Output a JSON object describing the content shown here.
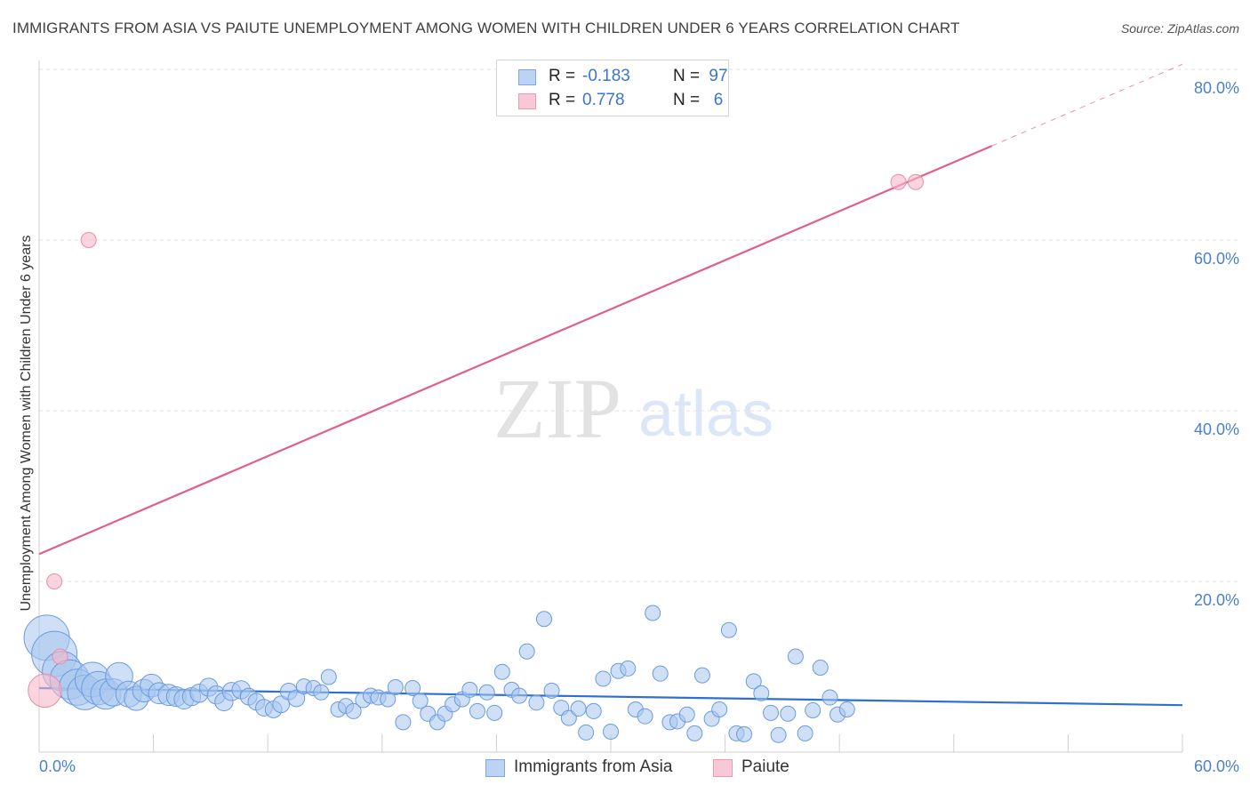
{
  "title": "IMMIGRANTS FROM ASIA VS PAIUTE UNEMPLOYMENT AMONG WOMEN WITH CHILDREN UNDER 6 YEARS CORRELATION CHART",
  "source": "Source: ZipAtlas.com",
  "watermark": {
    "zip": "ZIP",
    "atlas": "atlas"
  },
  "colors": {
    "asia_fill": "#a8c6ef",
    "asia_stroke": "#6a9be0",
    "asia_line": "#2f6fcf",
    "paiute_fill": "#f7b8ca",
    "paiute_stroke": "#e88fa8",
    "paiute_line": "#e0608a",
    "tick_text": "#4a7fd0",
    "grid": "#e0e0e0"
  },
  "legend": {
    "rows": [
      {
        "r_label": "R =",
        "r_value": "-0.183",
        "n_label": "N =",
        "n_value": "97"
      },
      {
        "r_label": "R =",
        "r_value": "0.778",
        "n_label": "N =",
        "n_value": "6"
      }
    ]
  },
  "bottom_legend": {
    "asia": "Immigrants from Asia",
    "paiute": "Paiute"
  },
  "chart_data": {
    "type": "scatter",
    "title": "IMMIGRANTS FROM ASIA VS PAIUTE UNEMPLOYMENT AMONG WOMEN WITH CHILDREN UNDER 6 YEARS CORRELATION CHART",
    "xlabel": "",
    "ylabel": "Unemployment Among Women with Children Under 6 years",
    "xlim": [
      0,
      60
    ],
    "ylim": [
      0,
      80
    ],
    "x_tick_labels": [
      "0.0%",
      "60.0%"
    ],
    "y_ticks": [
      20,
      40,
      60,
      80
    ],
    "y_tick_labels": [
      "20.0%",
      "40.0%",
      "60.0%",
      "80.0%"
    ],
    "grid": true,
    "series": [
      {
        "name": "Immigrants from Asia",
        "r": -0.183,
        "n": 97,
        "trend": {
          "x": [
            0,
            60
          ],
          "y": [
            7.5,
            5.5
          ],
          "dashed_from": null
        },
        "points": [
          [
            0.4,
            13.4,
            3
          ],
          [
            0.8,
            11.5,
            3
          ],
          [
            1.2,
            9.5,
            2.6
          ],
          [
            1.6,
            8.5,
            2.6
          ],
          [
            2.0,
            7.6,
            2.4
          ],
          [
            2.4,
            7.0,
            2.3
          ],
          [
            2.8,
            8.5,
            2.3
          ],
          [
            3.1,
            7.5,
            2.2
          ],
          [
            3.5,
            6.8,
            2
          ],
          [
            3.9,
            7.0,
            1.8
          ],
          [
            4.2,
            8.9,
            1.8
          ],
          [
            4.7,
            6.8,
            1.7
          ],
          [
            5.1,
            6.3,
            1.6
          ],
          [
            5.5,
            7.2,
            1.5
          ],
          [
            5.9,
            7.8,
            1.5
          ],
          [
            6.3,
            6.9,
            1.4
          ],
          [
            6.8,
            6.7,
            1.4
          ],
          [
            7.2,
            6.5,
            1.3
          ],
          [
            7.6,
            6.2,
            1.3
          ],
          [
            8.0,
            6.5,
            1.2
          ],
          [
            8.4,
            6.9,
            1.2
          ],
          [
            8.9,
            7.6,
            1.2
          ],
          [
            9.3,
            6.7,
            1.2
          ],
          [
            9.7,
            5.9,
            1.2
          ],
          [
            10.1,
            7.1,
            1.2
          ],
          [
            10.6,
            7.3,
            1.2
          ],
          [
            11.0,
            6.5,
            1.1
          ],
          [
            11.4,
            5.9,
            1.1
          ],
          [
            11.8,
            5.2,
            1.1
          ],
          [
            12.3,
            5.0,
            1.1
          ],
          [
            12.7,
            5.6,
            1.1
          ],
          [
            13.1,
            7.1,
            1.1
          ],
          [
            13.5,
            6.3,
            1.1
          ],
          [
            13.9,
            7.7,
            1
          ],
          [
            14.4,
            7.5,
            1
          ],
          [
            14.8,
            7.0,
            1
          ],
          [
            15.2,
            8.8,
            1
          ],
          [
            15.7,
            5.0,
            1
          ],
          [
            16.1,
            5.4,
            1
          ],
          [
            16.5,
            4.8,
            1
          ],
          [
            17.0,
            6.1,
            1
          ],
          [
            17.4,
            6.6,
            1
          ],
          [
            17.8,
            6.4,
            1
          ],
          [
            18.3,
            6.2,
            1
          ],
          [
            18.7,
            7.6,
            1
          ],
          [
            19.1,
            3.5,
            1
          ],
          [
            19.6,
            7.5,
            1
          ],
          [
            20.0,
            6.0,
            1
          ],
          [
            20.4,
            4.5,
            1
          ],
          [
            20.9,
            3.5,
            1
          ],
          [
            21.3,
            4.5,
            1
          ],
          [
            21.7,
            5.6,
            1
          ],
          [
            22.2,
            6.2,
            1
          ],
          [
            22.6,
            7.3,
            1
          ],
          [
            23.0,
            4.8,
            1
          ],
          [
            23.5,
            7.0,
            1
          ],
          [
            23.9,
            4.6,
            1
          ],
          [
            24.3,
            9.4,
            1
          ],
          [
            24.8,
            7.3,
            1
          ],
          [
            25.2,
            6.6,
            1
          ],
          [
            25.6,
            11.8,
            1
          ],
          [
            26.1,
            5.8,
            1
          ],
          [
            26.5,
            15.6,
            1
          ],
          [
            26.9,
            7.2,
            1
          ],
          [
            27.4,
            5.2,
            1
          ],
          [
            27.8,
            4.0,
            1
          ],
          [
            28.3,
            5.1,
            1
          ],
          [
            28.7,
            2.3,
            1
          ],
          [
            29.1,
            4.8,
            1
          ],
          [
            29.6,
            8.6,
            1
          ],
          [
            30.0,
            2.4,
            1
          ],
          [
            30.4,
            9.5,
            1
          ],
          [
            30.9,
            9.8,
            1
          ],
          [
            31.3,
            5.0,
            1
          ],
          [
            31.8,
            4.2,
            1
          ],
          [
            32.2,
            16.3,
            1
          ],
          [
            32.6,
            9.2,
            1
          ],
          [
            33.1,
            3.5,
            1
          ],
          [
            33.5,
            3.6,
            1
          ],
          [
            34.0,
            4.4,
            1
          ],
          [
            34.4,
            2.2,
            1
          ],
          [
            34.8,
            9.0,
            1
          ],
          [
            35.3,
            3.9,
            1
          ],
          [
            35.7,
            5.0,
            1
          ],
          [
            36.2,
            14.3,
            1
          ],
          [
            36.6,
            2.2,
            1
          ],
          [
            37.0,
            2.1,
            1
          ],
          [
            37.5,
            8.3,
            1
          ],
          [
            37.9,
            6.9,
            1
          ],
          [
            38.4,
            4.6,
            1
          ],
          [
            38.8,
            2.0,
            1
          ],
          [
            39.3,
            4.5,
            1
          ],
          [
            39.7,
            11.2,
            1
          ],
          [
            40.2,
            2.2,
            1
          ],
          [
            40.6,
            4.9,
            1
          ],
          [
            41.0,
            9.9,
            1
          ],
          [
            41.5,
            6.4,
            1
          ],
          [
            41.9,
            4.4,
            1
          ],
          [
            42.4,
            5.0,
            1
          ]
        ]
      },
      {
        "name": "Paiute",
        "r": 0.778,
        "n": 6,
        "trend": {
          "x": [
            0,
            60
          ],
          "y": [
            23.2,
            80.6
          ],
          "dashed_from": 50
        },
        "points": [
          [
            0.3,
            7.2,
            2.2
          ],
          [
            0.8,
            20.0,
            1
          ],
          [
            1.1,
            11.2,
            1
          ],
          [
            2.6,
            60.0,
            1
          ],
          [
            45.1,
            66.8,
            1
          ],
          [
            46.0,
            66.8,
            1
          ]
        ]
      }
    ]
  }
}
